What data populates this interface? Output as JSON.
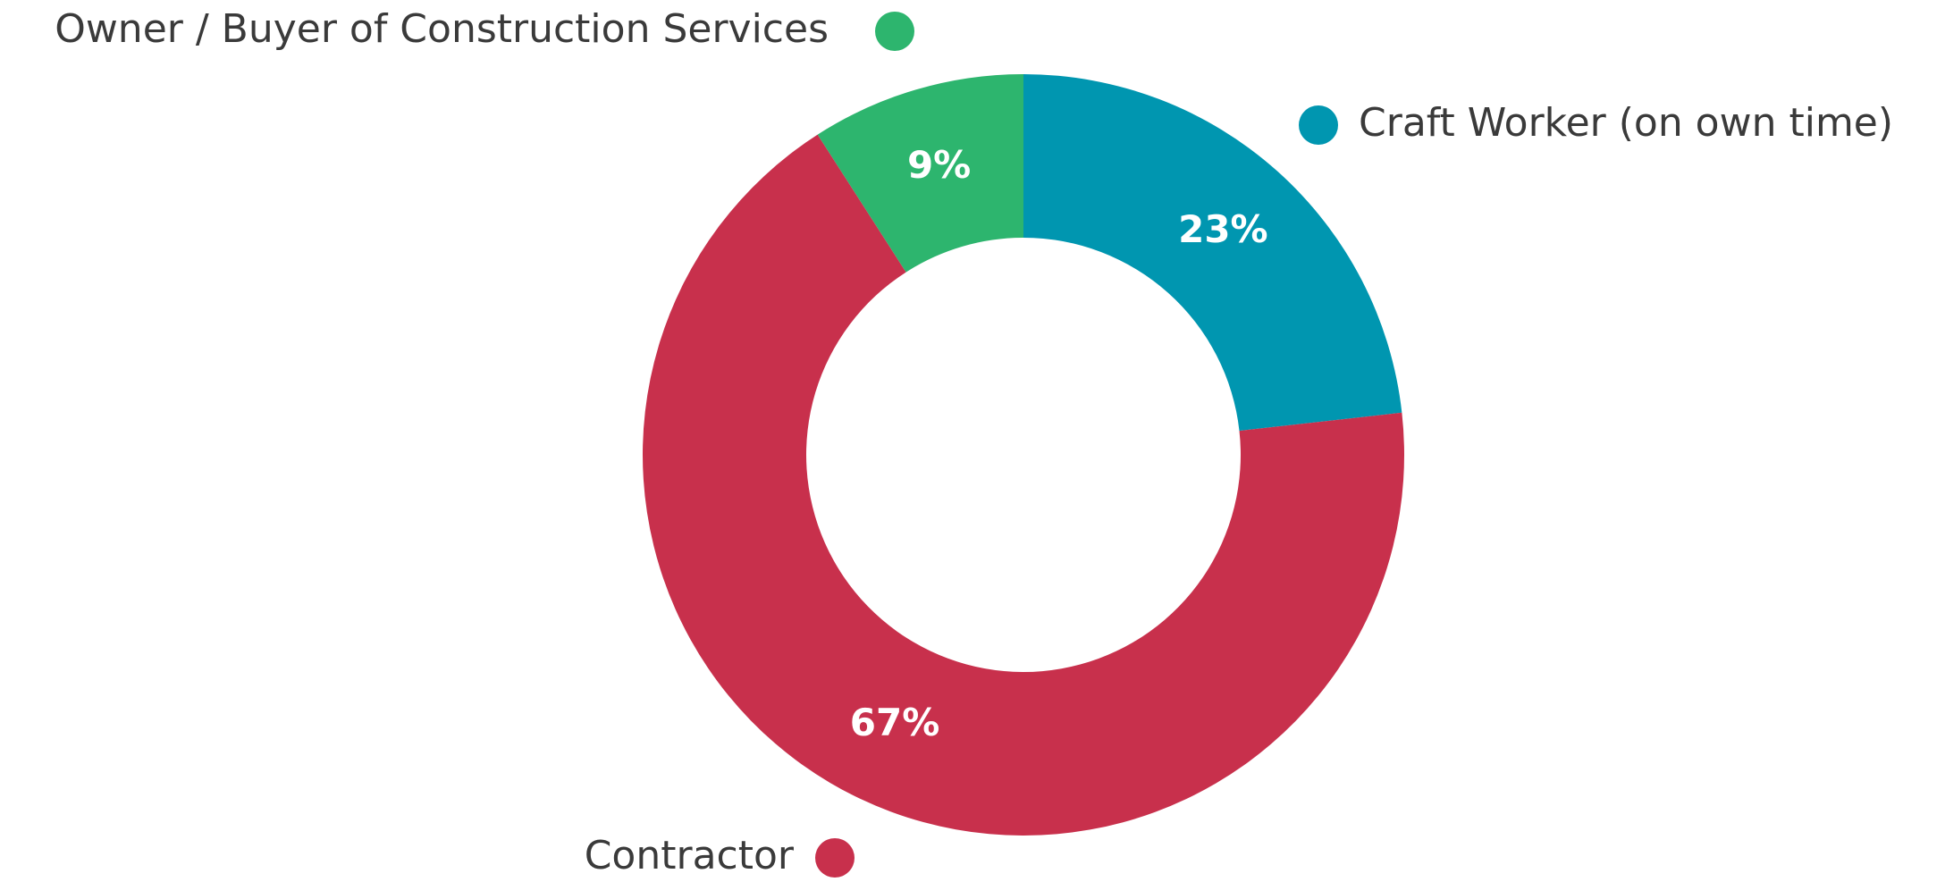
{
  "chart_data": {
    "type": "donut",
    "categories": [
      "Craft Worker (on own time)",
      "Contractor",
      "Owner / Buyer of Construction Services"
    ],
    "values": [
      23,
      67,
      9
    ],
    "value_labels": [
      "23%",
      "67%",
      "9%"
    ],
    "colors": [
      "#0096b0",
      "#c8304c",
      "#2db56e"
    ]
  }
}
